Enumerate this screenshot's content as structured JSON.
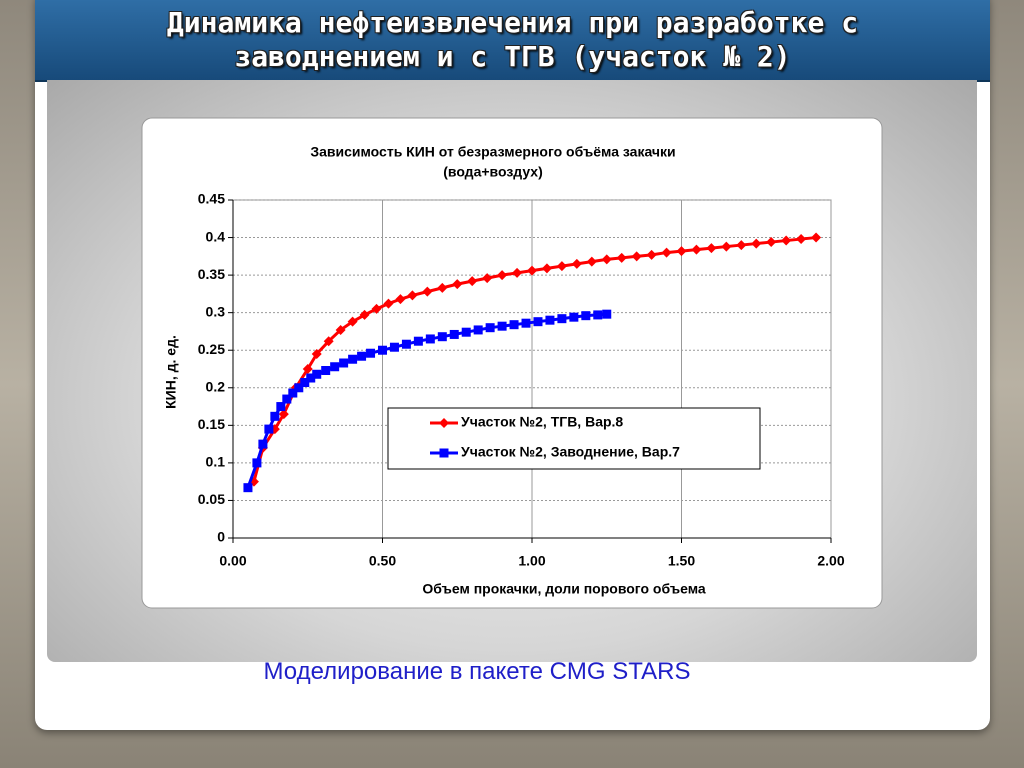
{
  "slide_title": [
    "Динамика нефтеизвлечения при разработке с",
    "заводнением и с ТГВ (участок № 2)"
  ],
  "caption": "Моделирование в пакете CMG STARS",
  "chart_data": {
    "type": "line",
    "title": [
      "Зависимость КИН от безразмерного объёма закачки",
      "(вода+воздух)"
    ],
    "x_label": "Объем прокачки, доли порового объема",
    "y_label": "КИН, д. ед.",
    "xlim": [
      0,
      2
    ],
    "ylim": [
      0,
      0.45
    ],
    "xticks": [
      {
        "value": 0,
        "label": "0.00"
      },
      {
        "value": 0.5,
        "label": "0.50"
      },
      {
        "value": 1,
        "label": "1.00"
      },
      {
        "value": 1.5,
        "label": "1.50"
      },
      {
        "value": 2,
        "label": "2.00"
      }
    ],
    "yticks": [
      0,
      0.05,
      0.1,
      0.15,
      0.2,
      0.25,
      0.3,
      0.35,
      0.4,
      0.45
    ],
    "grid": true,
    "legend": "lower right",
    "series": [
      {
        "name": "Участок №2, ТГВ, Вар.8",
        "color": "#ff0000",
        "marker": "diamond",
        "x": [
          0.07,
          0.1,
          0.14,
          0.17,
          0.21,
          0.25,
          0.28,
          0.32,
          0.36,
          0.4,
          0.44,
          0.48,
          0.52,
          0.56,
          0.6,
          0.65,
          0.7,
          0.75,
          0.8,
          0.85,
          0.9,
          0.95,
          1.0,
          1.05,
          1.1,
          1.15,
          1.2,
          1.25,
          1.3,
          1.35,
          1.4,
          1.45,
          1.5,
          1.55,
          1.6,
          1.65,
          1.7,
          1.75,
          1.8,
          1.85,
          1.9,
          1.95
        ],
        "values": [
          0.075,
          0.12,
          0.145,
          0.165,
          0.2,
          0.225,
          0.245,
          0.262,
          0.277,
          0.288,
          0.297,
          0.305,
          0.312,
          0.318,
          0.323,
          0.328,
          0.333,
          0.338,
          0.342,
          0.346,
          0.35,
          0.353,
          0.356,
          0.359,
          0.362,
          0.365,
          0.368,
          0.371,
          0.373,
          0.375,
          0.377,
          0.38,
          0.382,
          0.384,
          0.386,
          0.388,
          0.39,
          0.392,
          0.394,
          0.396,
          0.398,
          0.4
        ]
      },
      {
        "name": "Участок №2, Заводнение, Вар.7",
        "color": "#0000ff",
        "marker": "square",
        "x": [
          0.05,
          0.08,
          0.1,
          0.12,
          0.14,
          0.16,
          0.18,
          0.2,
          0.22,
          0.24,
          0.26,
          0.28,
          0.31,
          0.34,
          0.37,
          0.4,
          0.43,
          0.46,
          0.5,
          0.54,
          0.58,
          0.62,
          0.66,
          0.7,
          0.74,
          0.78,
          0.82,
          0.86,
          0.9,
          0.94,
          0.98,
          1.02,
          1.06,
          1.1,
          1.14,
          1.18,
          1.22,
          1.25
        ],
        "values": [
          0.067,
          0.1,
          0.125,
          0.145,
          0.162,
          0.175,
          0.185,
          0.193,
          0.2,
          0.207,
          0.213,
          0.218,
          0.223,
          0.228,
          0.233,
          0.238,
          0.242,
          0.246,
          0.25,
          0.254,
          0.258,
          0.262,
          0.265,
          0.268,
          0.271,
          0.274,
          0.277,
          0.28,
          0.282,
          0.284,
          0.286,
          0.288,
          0.29,
          0.292,
          0.294,
          0.296,
          0.297,
          0.298
        ]
      }
    ]
  }
}
